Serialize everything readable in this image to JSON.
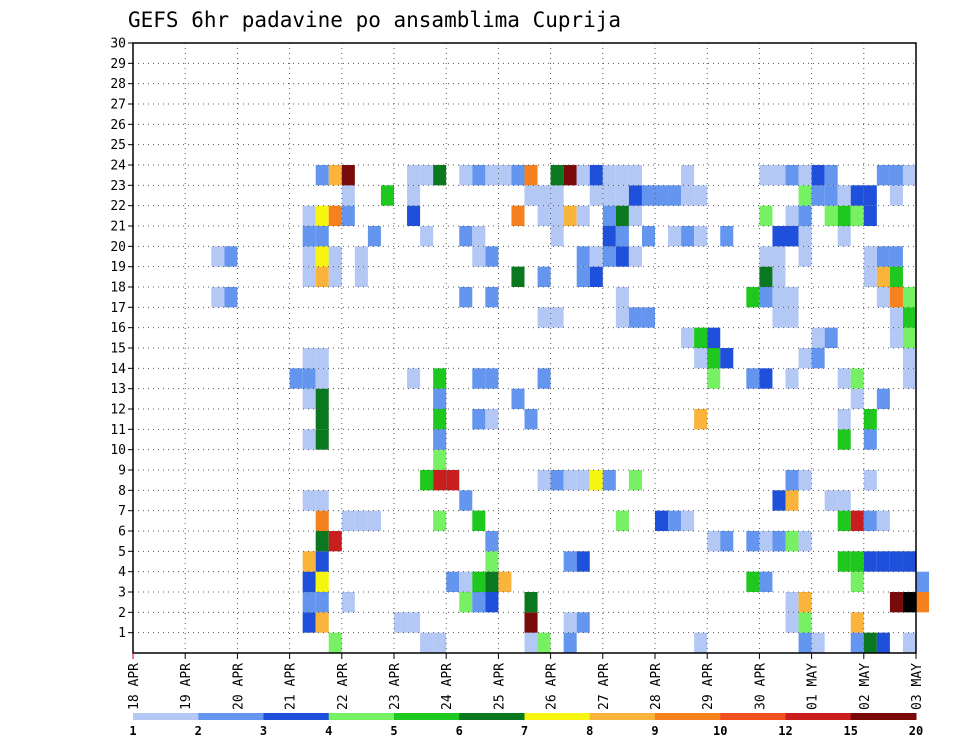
{
  "chart_data": {
    "type": "heatmap",
    "title": "GEFS 6hr padavine po ansamblima Cuprija",
    "x_tick_labels": [
      "18 APR",
      "19 APR",
      "20 APR",
      "21 APR",
      "22 APR",
      "23 APR",
      "24 APR",
      "25 APR",
      "26 APR",
      "27 APR",
      "28 APR",
      "29 APR",
      "30 APR",
      "01 MAY",
      "02 MAY",
      "03 MAY"
    ],
    "y_tick_labels": [
      "1",
      "2",
      "3",
      "4",
      "5",
      "6",
      "7",
      "8",
      "9",
      "10",
      "11",
      "12",
      "13",
      "14",
      "15",
      "16",
      "17",
      "18",
      "19",
      "20",
      "21",
      "22",
      "23",
      "24",
      "25",
      "26",
      "27",
      "28",
      "29",
      "30"
    ],
    "x_range_steps": [
      0,
      60
    ],
    "y_range_members": [
      0,
      30
    ],
    "grid": true,
    "colorbar": {
      "labels": [
        "1",
        "2",
        "3",
        "4",
        "5",
        "6",
        "7",
        "8",
        "9",
        "10",
        "12",
        "15",
        "20"
      ],
      "colors": [
        "#b4c8f5",
        "#6496f0",
        "#1e50dc",
        "#78f064",
        "#1ec81e",
        "#0a781e",
        "#f5f50f",
        "#fab43c",
        "#f5821e",
        "#f0501e",
        "#c81e1e",
        "#780a0a"
      ]
    },
    "levels": [
      1,
      2,
      3,
      4,
      5,
      6,
      7,
      8,
      9,
      10,
      12,
      15,
      20
    ],
    "cells": [
      [
        1,
        15,
        4
      ],
      [
        1,
        22,
        1
      ],
      [
        1,
        23,
        1
      ],
      [
        1,
        30,
        1
      ],
      [
        1,
        31,
        4
      ],
      [
        1,
        33,
        2
      ],
      [
        1,
        43,
        1
      ],
      [
        1,
        51,
        2
      ],
      [
        1,
        52,
        1
      ],
      [
        1,
        55,
        2
      ],
      [
        1,
        56,
        6
      ],
      [
        1,
        57,
        3
      ],
      [
        1,
        59,
        1
      ],
      [
        2,
        13,
        3
      ],
      [
        2,
        14,
        8
      ],
      [
        2,
        20,
        1
      ],
      [
        2,
        21,
        1
      ],
      [
        2,
        30,
        12
      ],
      [
        2,
        33,
        1
      ],
      [
        2,
        34,
        2
      ],
      [
        2,
        50,
        1
      ],
      [
        2,
        51,
        4
      ],
      [
        2,
        55,
        8
      ],
      [
        3,
        13,
        2
      ],
      [
        3,
        14,
        2
      ],
      [
        3,
        16,
        1
      ],
      [
        3,
        25,
        4
      ],
      [
        3,
        26,
        2
      ],
      [
        3,
        27,
        3
      ],
      [
        3,
        30,
        6
      ],
      [
        3,
        50,
        1
      ],
      [
        3,
        51,
        8
      ],
      [
        3,
        58,
        12
      ],
      [
        3,
        59,
        13
      ],
      [
        3,
        60,
        9
      ],
      [
        4,
        13,
        3
      ],
      [
        4,
        14,
        7
      ],
      [
        4,
        24,
        2
      ],
      [
        4,
        25,
        1
      ],
      [
        4,
        26,
        5
      ],
      [
        4,
        27,
        6
      ],
      [
        4,
        28,
        8
      ],
      [
        4,
        47,
        5
      ],
      [
        4,
        48,
        2
      ],
      [
        4,
        55,
        4
      ],
      [
        4,
        60,
        2
      ],
      [
        5,
        13,
        8
      ],
      [
        5,
        14,
        3
      ],
      [
        5,
        27,
        4
      ],
      [
        5,
        33,
        2
      ],
      [
        5,
        34,
        3
      ],
      [
        5,
        54,
        5
      ],
      [
        5,
        55,
        5
      ],
      [
        5,
        56,
        3
      ],
      [
        5,
        57,
        3
      ],
      [
        5,
        58,
        3
      ],
      [
        5,
        59,
        3
      ],
      [
        6,
        14,
        6
      ],
      [
        6,
        15,
        11
      ],
      [
        6,
        27,
        2
      ],
      [
        6,
        44,
        1
      ],
      [
        6,
        45,
        2
      ],
      [
        6,
        47,
        2
      ],
      [
        6,
        48,
        1
      ],
      [
        6,
        49,
        2
      ],
      [
        6,
        50,
        4
      ],
      [
        6,
        51,
        1
      ],
      [
        7,
        14,
        9
      ],
      [
        7,
        16,
        1
      ],
      [
        7,
        17,
        1
      ],
      [
        7,
        18,
        1
      ],
      [
        7,
        23,
        4
      ],
      [
        7,
        26,
        5
      ],
      [
        7,
        37,
        4
      ],
      [
        7,
        40,
        3
      ],
      [
        7,
        41,
        2
      ],
      [
        7,
        42,
        1
      ],
      [
        7,
        54,
        5
      ],
      [
        7,
        55,
        11
      ],
      [
        7,
        56,
        2
      ],
      [
        7,
        57,
        1
      ],
      [
        8,
        13,
        1
      ],
      [
        8,
        14,
        1
      ],
      [
        8,
        25,
        2
      ],
      [
        8,
        49,
        3
      ],
      [
        8,
        50,
        8
      ],
      [
        8,
        53,
        1
      ],
      [
        8,
        54,
        1
      ],
      [
        9,
        22,
        5
      ],
      [
        9,
        23,
        11
      ],
      [
        9,
        24,
        11
      ],
      [
        9,
        31,
        1
      ],
      [
        9,
        32,
        2
      ],
      [
        9,
        33,
        1
      ],
      [
        9,
        34,
        1
      ],
      [
        9,
        35,
        7
      ],
      [
        9,
        36,
        2
      ],
      [
        9,
        38,
        4
      ],
      [
        9,
        50,
        2
      ],
      [
        9,
        51,
        1
      ],
      [
        9,
        56,
        1
      ],
      [
        10,
        23,
        4
      ],
      [
        11,
        13,
        1
      ],
      [
        11,
        14,
        6
      ],
      [
        11,
        23,
        2
      ],
      [
        11,
        54,
        5
      ],
      [
        11,
        56,
        2
      ],
      [
        12,
        14,
        6
      ],
      [
        12,
        23,
        5
      ],
      [
        12,
        26,
        2
      ],
      [
        12,
        27,
        1
      ],
      [
        12,
        30,
        2
      ],
      [
        12,
        43,
        8
      ],
      [
        12,
        54,
        1
      ],
      [
        12,
        56,
        5
      ],
      [
        13,
        13,
        1
      ],
      [
        13,
        14,
        6
      ],
      [
        13,
        23,
        2
      ],
      [
        13,
        29,
        2
      ],
      [
        13,
        55,
        1
      ],
      [
        13,
        57,
        2
      ],
      [
        14,
        12,
        2
      ],
      [
        14,
        13,
        2
      ],
      [
        14,
        14,
        1
      ],
      [
        14,
        21,
        1
      ],
      [
        14,
        23,
        5
      ],
      [
        14,
        26,
        2
      ],
      [
        14,
        27,
        2
      ],
      [
        14,
        31,
        2
      ],
      [
        14,
        44,
        4
      ],
      [
        14,
        47,
        2
      ],
      [
        14,
        48,
        3
      ],
      [
        14,
        50,
        1
      ],
      [
        14,
        54,
        1
      ],
      [
        14,
        55,
        4
      ],
      [
        14,
        59,
        1
      ],
      [
        15,
        13,
        1
      ],
      [
        15,
        14,
        1
      ],
      [
        15,
        43,
        1
      ],
      [
        15,
        44,
        5
      ],
      [
        15,
        45,
        3
      ],
      [
        15,
        51,
        1
      ],
      [
        15,
        52,
        2
      ],
      [
        15,
        59,
        1
      ],
      [
        16,
        42,
        1
      ],
      [
        16,
        43,
        5
      ],
      [
        16,
        44,
        3
      ],
      [
        16,
        52,
        1
      ],
      [
        16,
        53,
        2
      ],
      [
        16,
        58,
        1
      ],
      [
        16,
        59,
        4
      ],
      [
        17,
        31,
        1
      ],
      [
        17,
        32,
        1
      ],
      [
        17,
        37,
        1
      ],
      [
        17,
        38,
        2
      ],
      [
        17,
        39,
        2
      ],
      [
        17,
        49,
        1
      ],
      [
        17,
        50,
        1
      ],
      [
        17,
        58,
        1
      ],
      [
        17,
        59,
        5
      ],
      [
        18,
        6,
        1
      ],
      [
        18,
        7,
        2
      ],
      [
        18,
        25,
        2
      ],
      [
        18,
        27,
        2
      ],
      [
        18,
        37,
        1
      ],
      [
        18,
        47,
        5
      ],
      [
        18,
        48,
        2
      ],
      [
        18,
        49,
        1
      ],
      [
        18,
        50,
        1
      ],
      [
        18,
        57,
        1
      ],
      [
        18,
        58,
        9
      ],
      [
        18,
        59,
        4
      ],
      [
        19,
        13,
        1
      ],
      [
        19,
        14,
        8
      ],
      [
        19,
        15,
        1
      ],
      [
        19,
        17,
        1
      ],
      [
        19,
        29,
        6
      ],
      [
        19,
        31,
        2
      ],
      [
        19,
        34,
        2
      ],
      [
        19,
        35,
        3
      ],
      [
        19,
        48,
        6
      ],
      [
        19,
        49,
        1
      ],
      [
        19,
        56,
        1
      ],
      [
        19,
        57,
        8
      ],
      [
        19,
        58,
        5
      ],
      [
        20,
        6,
        1
      ],
      [
        20,
        7,
        2
      ],
      [
        20,
        13,
        1
      ],
      [
        20,
        14,
        7
      ],
      [
        20,
        15,
        1
      ],
      [
        20,
        17,
        1
      ],
      [
        20,
        26,
        1
      ],
      [
        20,
        27,
        2
      ],
      [
        20,
        34,
        2
      ],
      [
        20,
        35,
        1
      ],
      [
        20,
        36,
        2
      ],
      [
        20,
        37,
        3
      ],
      [
        20,
        38,
        1
      ],
      [
        20,
        48,
        1
      ],
      [
        20,
        49,
        1
      ],
      [
        20,
        51,
        1
      ],
      [
        20,
        56,
        1
      ],
      [
        20,
        57,
        2
      ],
      [
        20,
        58,
        2
      ],
      [
        21,
        13,
        2
      ],
      [
        21,
        14,
        2
      ],
      [
        21,
        18,
        2
      ],
      [
        21,
        22,
        1
      ],
      [
        21,
        25,
        2
      ],
      [
        21,
        26,
        1
      ],
      [
        21,
        32,
        1
      ],
      [
        21,
        36,
        3
      ],
      [
        21,
        37,
        2
      ],
      [
        21,
        39,
        2
      ],
      [
        21,
        41,
        1
      ],
      [
        21,
        42,
        2
      ],
      [
        21,
        43,
        1
      ],
      [
        21,
        45,
        2
      ],
      [
        21,
        49,
        3
      ],
      [
        21,
        50,
        3
      ],
      [
        21,
        51,
        1
      ],
      [
        21,
        54,
        1
      ],
      [
        22,
        13,
        1
      ],
      [
        22,
        14,
        7
      ],
      [
        22,
        15,
        9
      ],
      [
        22,
        16,
        2
      ],
      [
        22,
        21,
        3
      ],
      [
        22,
        29,
        9
      ],
      [
        22,
        31,
        1
      ],
      [
        22,
        32,
        1
      ],
      [
        22,
        33,
        8
      ],
      [
        22,
        34,
        1
      ],
      [
        22,
        36,
        2
      ],
      [
        22,
        37,
        6
      ],
      [
        22,
        38,
        1
      ],
      [
        22,
        48,
        4
      ],
      [
        22,
        50,
        1
      ],
      [
        22,
        51,
        2
      ],
      [
        22,
        53,
        4
      ],
      [
        22,
        54,
        5
      ],
      [
        22,
        55,
        4
      ],
      [
        22,
        56,
        3
      ],
      [
        23,
        16,
        1
      ],
      [
        23,
        19,
        5
      ],
      [
        23,
        21,
        1
      ],
      [
        23,
        30,
        1
      ],
      [
        23,
        31,
        1
      ],
      [
        23,
        32,
        1
      ],
      [
        23,
        35,
        1
      ],
      [
        23,
        36,
        1
      ],
      [
        23,
        37,
        1
      ],
      [
        23,
        38,
        3
      ],
      [
        23,
        39,
        2
      ],
      [
        23,
        40,
        2
      ],
      [
        23,
        41,
        2
      ],
      [
        23,
        42,
        1
      ],
      [
        23,
        43,
        1
      ],
      [
        23,
        51,
        4
      ],
      [
        23,
        52,
        2
      ],
      [
        23,
        53,
        2
      ],
      [
        23,
        54,
        1
      ],
      [
        23,
        55,
        3
      ],
      [
        23,
        56,
        3
      ],
      [
        23,
        58,
        1
      ],
      [
        24,
        14,
        2
      ],
      [
        24,
        15,
        8
      ],
      [
        24,
        16,
        12
      ],
      [
        24,
        21,
        1
      ],
      [
        24,
        22,
        1
      ],
      [
        24,
        23,
        6
      ],
      [
        24,
        25,
        1
      ],
      [
        24,
        26,
        2
      ],
      [
        24,
        27,
        1
      ],
      [
        24,
        28,
        1
      ],
      [
        24,
        29,
        2
      ],
      [
        24,
        30,
        9
      ],
      [
        24,
        32,
        6
      ],
      [
        24,
        33,
        12
      ],
      [
        24,
        34,
        1
      ],
      [
        24,
        35,
        3
      ],
      [
        24,
        36,
        1
      ],
      [
        24,
        37,
        1
      ],
      [
        24,
        38,
        1
      ],
      [
        24,
        42,
        1
      ],
      [
        24,
        48,
        1
      ],
      [
        24,
        49,
        1
      ],
      [
        24,
        50,
        2
      ],
      [
        24,
        51,
        1
      ],
      [
        24,
        52,
        3
      ],
      [
        24,
        53,
        2
      ],
      [
        24,
        57,
        2
      ],
      [
        24,
        58,
        2
      ],
      [
        24,
        59,
        1
      ]
    ]
  }
}
